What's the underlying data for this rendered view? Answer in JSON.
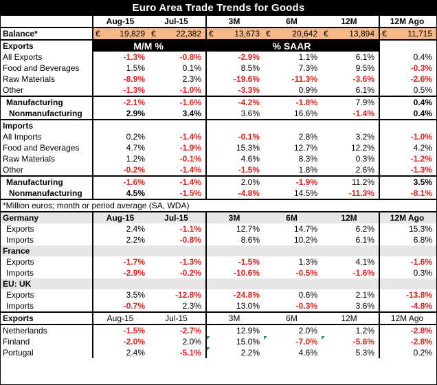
{
  "title": "Euro Area Trade Trends for Goods",
  "columns": [
    "Aug-15",
    "Jul-15",
    "3M",
    "6M",
    "12M",
    "12M Ago"
  ],
  "balance": {
    "label": "Balance*",
    "currency": "€",
    "values": [
      "19,829",
      "22,382",
      "13,673",
      "20,642",
      "13,894",
      "11,715"
    ]
  },
  "exports_header": {
    "label": "Exports",
    "mm": "M/M %",
    "saar": "% SAAR"
  },
  "exports_rows": [
    {
      "label": "All Exports",
      "values": [
        "-1.3%",
        "-0.8%",
        "-2.9%",
        "1.1%",
        "6.1%",
        "0.4%"
      ]
    },
    {
      "label": "Food and Beverages",
      "values": [
        "1.5%",
        "0.1%",
        "8.5%",
        "7.3%",
        "9.5%",
        "-0.3%"
      ]
    },
    {
      "label": "Raw Materials",
      "values": [
        "-8.9%",
        "2.3%",
        "-19.6%",
        "-11.3%",
        "-3.6%",
        "-2.6%"
      ]
    },
    {
      "label": "Other",
      "values": [
        "-1.3%",
        "-1.0%",
        "-3.3%",
        "0.9%",
        "6.1%",
        "0.5%"
      ]
    },
    {
      "label": "Manufacturing",
      "values": [
        "-2.1%",
        "-1.6%",
        "-4.2%",
        "-1.8%",
        "7.9%",
        "0.4%"
      ]
    },
    {
      "label": "Nonmanufacturing",
      "values": [
        "2.9%",
        "3.4%",
        "3.6%",
        "16.6%",
        "-1.4%",
        "0.4%"
      ]
    }
  ],
  "imports_header": {
    "label": "Imports"
  },
  "imports_rows": [
    {
      "label": "All Imports",
      "values": [
        "0.2%",
        "-1.4%",
        "-0.1%",
        "2.8%",
        "3.2%",
        "-1.0%"
      ]
    },
    {
      "label": "Food and Beverages",
      "values": [
        "4.7%",
        "-1.9%",
        "15.3%",
        "12.7%",
        "12.2%",
        "4.2%"
      ]
    },
    {
      "label": "Raw Materials",
      "values": [
        "1.2%",
        "-0.1%",
        "4.6%",
        "8.3%",
        "0.3%",
        "-1.2%"
      ]
    },
    {
      "label": "Other",
      "values": [
        "-0.2%",
        "-1.4%",
        "-1.5%",
        "1.8%",
        "2.6%",
        "-1.3%"
      ]
    },
    {
      "label": "Manufacturing",
      "values": [
        "-1.6%",
        "-1.4%",
        "2.0%",
        "-1.9%",
        "11.2%",
        "3.5%"
      ]
    },
    {
      "label": "Nonmanufacturing",
      "values": [
        "4.5%",
        "-1.5%",
        "-4.8%",
        "14.5%",
        "-11.3%",
        "-8.1%"
      ]
    }
  ],
  "footnote": "*Million euros; month or period average (SA, WDA)",
  "countries": [
    {
      "name": "Germany",
      "exports": [
        "2.4%",
        "-1.1%",
        "12.7%",
        "14.7%",
        "6.2%",
        "15.3%"
      ],
      "imports": [
        "2.2%",
        "-0.8%",
        "8.6%",
        "10.2%",
        "6.1%",
        "6.8%"
      ]
    },
    {
      "name": "France",
      "exports": [
        "-1.7%",
        "-1.3%",
        "-1.5%",
        "1.3%",
        "4.1%",
        "-1.6%"
      ],
      "imports": [
        "-2.9%",
        "-0.2%",
        "-10.6%",
        "-0.5%",
        "-1.6%",
        "0.3%"
      ]
    },
    {
      "name": "EU: UK",
      "exports": [
        "3.5%",
        "-12.8%",
        "-24.8%",
        "0.6%",
        "2.1%",
        "-13.8%"
      ],
      "imports": [
        "-0.7%",
        "2.3%",
        "13.0%",
        "-0.3%",
        "3.6%",
        "-4.8%"
      ]
    }
  ],
  "sub_labels": {
    "exports": "Exports",
    "imports": "Imports"
  },
  "exports_by_dest_header": {
    "label": "Exports"
  },
  "dest_rows": [
    {
      "label": "Netherlands",
      "values": [
        "-1.5%",
        "-2.7%",
        "12.9%",
        "2.0%",
        "1.2%",
        "-2.8%"
      ]
    },
    {
      "label": "Finland",
      "values": [
        "-2.0%",
        "2.0%",
        "15.0%",
        "-7.0%",
        "-5.6%",
        "-2.8%"
      ]
    },
    {
      "label": "Portugal",
      "values": [
        "2.4%",
        "-5.1%",
        "2.2%",
        "4.6%",
        "5.3%",
        "0.2%"
      ]
    }
  ],
  "colors": {
    "negative": "#e8211c",
    "balance_fill": "#f7b887",
    "header_fill": "#000000",
    "shade": "#e6e6e6"
  }
}
